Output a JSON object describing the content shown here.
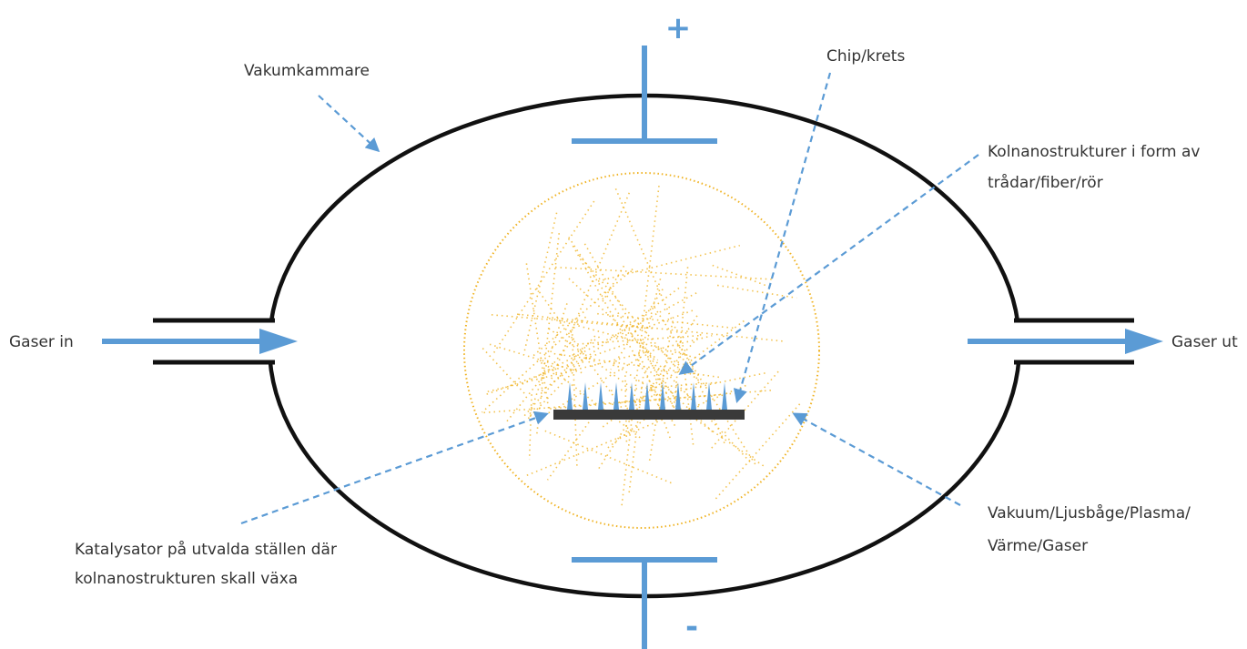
{
  "electrodes": {
    "positive": "+",
    "negative": "-"
  },
  "labels": {
    "chamber": "Vakumkammare",
    "chip": "Chip/krets",
    "nanostructures": [
      "Kolnanostrukturer i form av",
      "trådar/fiber/rör"
    ],
    "gas_in": "Gaser in",
    "gas_out": "Gaser ut",
    "catalyst": [
      "Katalysator på utvalda ställen där",
      "kolnanostrukturen skall växa"
    ],
    "environment": [
      "Vakuum/Ljusbåge/Plasma/",
      "Värme/Gaser"
    ]
  }
}
